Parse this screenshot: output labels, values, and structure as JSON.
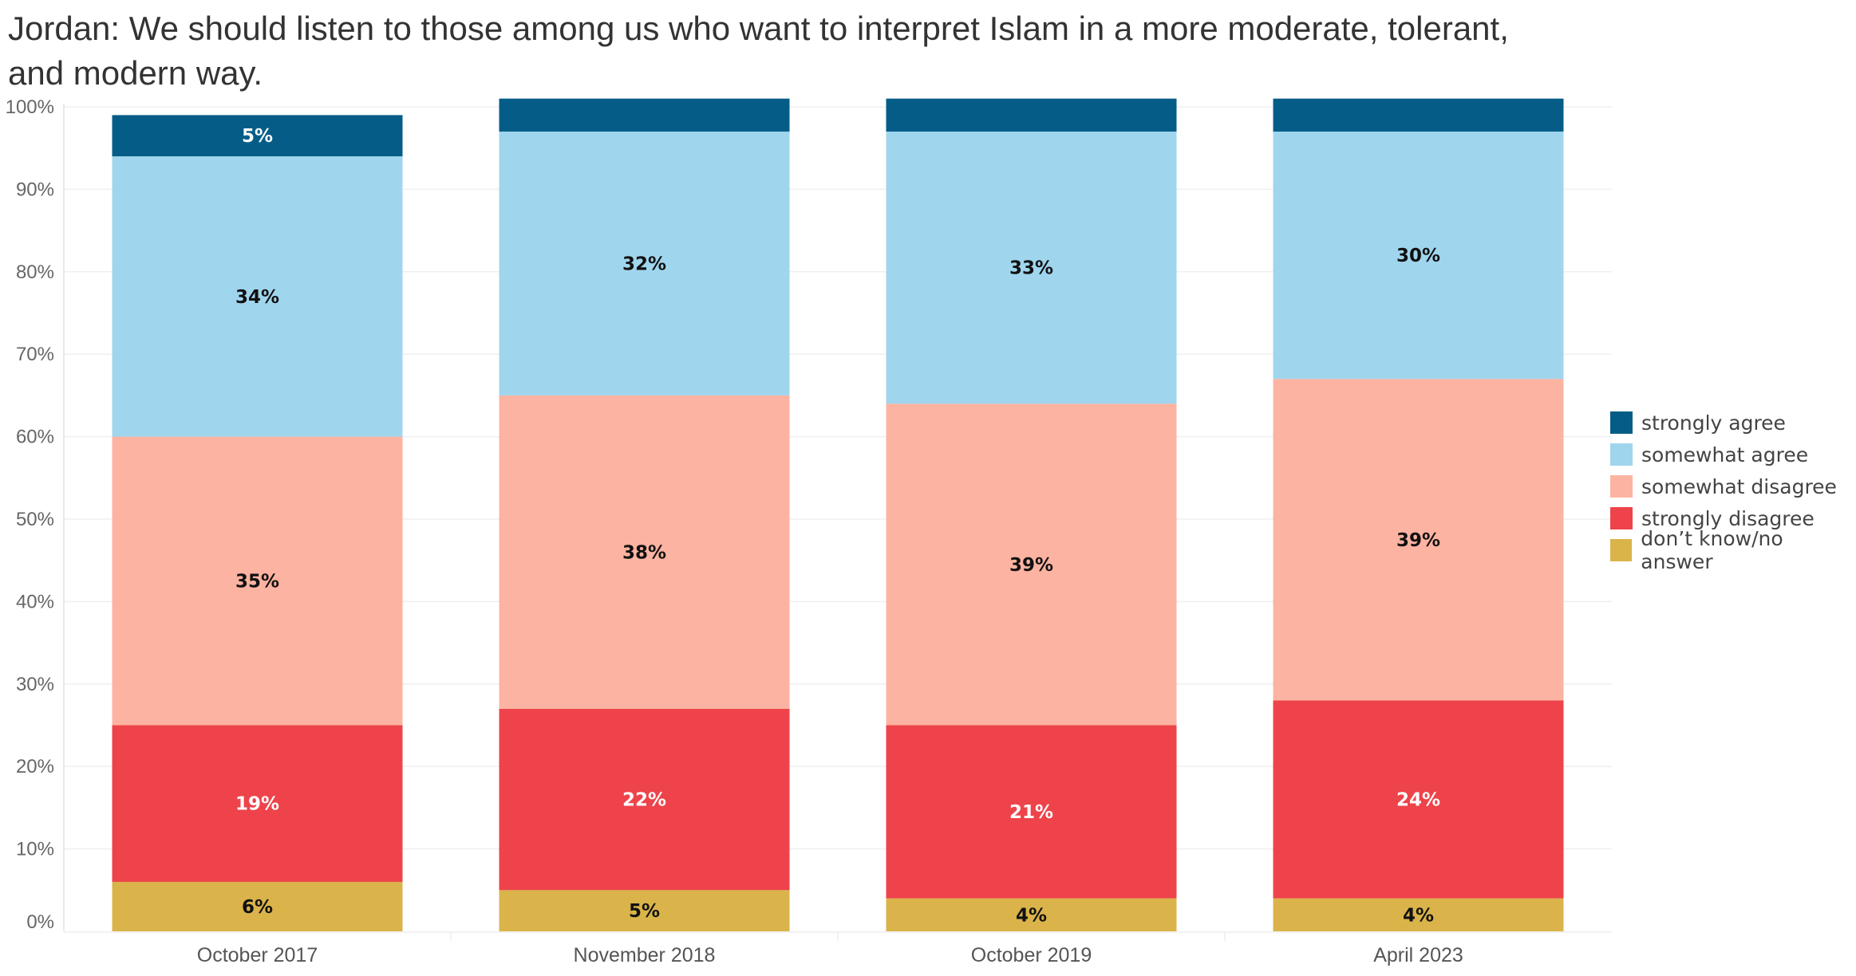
{
  "title": "Jordan: We should listen to those among us who want to interpret Islam in a more moderate, tolerant, and modern way.",
  "chart_data": {
    "type": "bar",
    "stacked": true,
    "categories": [
      "October 2017",
      "November 2018",
      "October 2019",
      "April 2023"
    ],
    "series": [
      {
        "name": "don't know/no answer",
        "color": "#DAB44A",
        "values": [
          6,
          5,
          4,
          4
        ],
        "labels": [
          "6%",
          "5%",
          "4%",
          "4%"
        ]
      },
      {
        "name": "strongly disagree",
        "color": "#EE434A",
        "values": [
          19,
          22,
          21,
          24
        ],
        "labels": [
          "19%",
          "22%",
          "21%",
          "24%"
        ]
      },
      {
        "name": "somewhat disagree",
        "color": "#FDB3A1",
        "values": [
          35,
          38,
          39,
          39
        ],
        "labels": [
          "35%",
          "38%",
          "39%",
          "39%"
        ]
      },
      {
        "name": "somewhat agree",
        "color": "#A0D5EE",
        "values": [
          34,
          32,
          33,
          30
        ],
        "labels": [
          "34%",
          "32%",
          "33%",
          "30%"
        ]
      },
      {
        "name": "strongly agree",
        "color": "#055D87",
        "values": [
          5,
          4,
          4,
          4
        ],
        "labels": [
          "5%",
          "",
          "",
          ""
        ]
      }
    ],
    "y_ticks": [
      "0%",
      "10%",
      "20%",
      "30%",
      "40%",
      "50%",
      "60%",
      "70%",
      "80%",
      "90%",
      "100%"
    ],
    "ylim": [
      0,
      100
    ],
    "grid": true,
    "legend_position": "right"
  },
  "legend": {
    "items": [
      {
        "label": "strongly agree",
        "color": "#055D87"
      },
      {
        "label": "somewhat agree",
        "color": "#A0D5EE"
      },
      {
        "label": "somewhat disagree",
        "color": "#FDB3A1"
      },
      {
        "label": "strongly disagree",
        "color": "#EE434A"
      },
      {
        "label": "don’t know/no answer",
        "color": "#DAB44A"
      }
    ]
  }
}
